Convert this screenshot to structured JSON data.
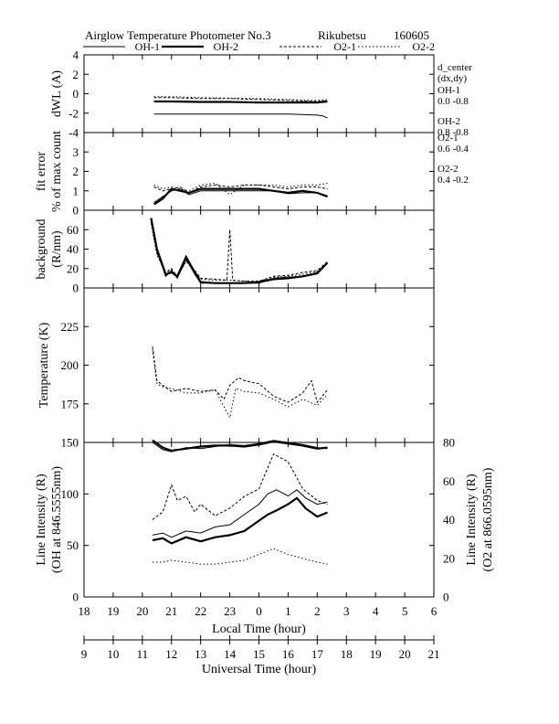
{
  "title": {
    "name": "Airglow Temperature Photometer No.3",
    "station": "Rikubetsu",
    "date": "160605"
  },
  "legend": [
    {
      "name": "OH-1",
      "style": "s-oh1"
    },
    {
      "name": "OH-2",
      "style": "s-oh2"
    },
    {
      "name": "O2-1",
      "style": "s-o21"
    },
    {
      "name": "O2-2",
      "style": "s-o22"
    }
  ],
  "d_center": {
    "title": "d_center",
    "subtitle": "(dx,dy)",
    "items": [
      {
        "name": "OH-1",
        "value": "0.0   -0.8"
      },
      {
        "name": "OH-2",
        "value": "0.8   -0.8"
      },
      {
        "name": "O2-1",
        "value": "0.6   -0.4"
      },
      {
        "name": "O2-2",
        "value": "0.4   -0.2"
      }
    ]
  },
  "xaxis_local": {
    "label": "Local Time (hour)",
    "ticks": [
      "18",
      "19",
      "20",
      "21",
      "22",
      "23",
      "0",
      "1",
      "2",
      "3",
      "4",
      "5",
      "6"
    ]
  },
  "xaxis_ut": {
    "label": "Universal Time (hour)",
    "ticks": [
      "9",
      "10",
      "11",
      "12",
      "13",
      "14",
      "15",
      "16",
      "17",
      "18",
      "19",
      "20",
      "21"
    ]
  },
  "chart_data": [
    {
      "type": "line",
      "panel": "dwl",
      "ylabel": "dWL (A)",
      "ylim": [
        -4,
        4
      ],
      "yticks": [
        "4",
        "2",
        "0",
        "-2",
        "-4"
      ],
      "x_unit": "local time (hour, 18-30)",
      "series": [
        {
          "name": "OH-1",
          "x": [
            20.4,
            21,
            22,
            23,
            24,
            25,
            26,
            26.2,
            26.35
          ],
          "y": [
            -2.1,
            -2.1,
            -2.1,
            -2.1,
            -2.1,
            -2.1,
            -2.2,
            -2.3,
            -2.5
          ]
        },
        {
          "name": "OH-2",
          "x": [
            20.4,
            21,
            22,
            23,
            24,
            25,
            26,
            26.35
          ],
          "y": [
            -0.8,
            -0.8,
            -0.85,
            -0.85,
            -0.9,
            -0.9,
            -0.9,
            -0.8
          ]
        },
        {
          "name": "O2-1",
          "x": [
            20.4,
            21,
            22,
            23,
            24,
            25,
            26,
            26.35
          ],
          "y": [
            -0.4,
            -0.4,
            -0.5,
            -0.5,
            -0.6,
            -0.7,
            -0.8,
            -0.7
          ]
        },
        {
          "name": "O2-2",
          "x": [
            20.4,
            21,
            22,
            23,
            24,
            25,
            26,
            26.35
          ],
          "y": [
            -0.3,
            -0.3,
            -0.4,
            -0.45,
            -0.5,
            -0.6,
            -0.7,
            -0.6
          ]
        }
      ]
    },
    {
      "type": "line",
      "panel": "fit",
      "ylabel": "fit error",
      "ylabel2": "% of max count",
      "ylim": [
        0,
        4
      ],
      "yticks": [
        "3",
        "2",
        "1",
        "0"
      ],
      "series": [
        {
          "name": "OH-1",
          "x": [
            20.4,
            20.7,
            21,
            21.3,
            21.6,
            22,
            22.5,
            23,
            23.5,
            24,
            24.5,
            25,
            25.5,
            26,
            26.35
          ],
          "y": [
            0.4,
            0.7,
            1.0,
            1.1,
            0.8,
            1.0,
            1.0,
            1.0,
            1.0,
            1.0,
            1.0,
            0.85,
            0.9,
            0.9,
            0.75
          ]
        },
        {
          "name": "OH-2",
          "x": [
            20.4,
            20.7,
            21,
            21.3,
            21.6,
            22,
            22.5,
            23,
            23.5,
            24,
            24.5,
            25,
            25.5,
            26,
            26.35
          ],
          "y": [
            0.3,
            0.6,
            1.1,
            1.0,
            0.9,
            1.1,
            1.1,
            1.1,
            1.1,
            1.1,
            1.0,
            0.9,
            1.0,
            0.9,
            0.7
          ]
        },
        {
          "name": "O2-1",
          "x": [
            20.4,
            20.7,
            21,
            21.3,
            21.6,
            22,
            22.5,
            23,
            23.5,
            24,
            24.5,
            25,
            25.5,
            26,
            26.35
          ],
          "y": [
            1.2,
            1.0,
            1.1,
            1.2,
            0.9,
            1.2,
            1.3,
            1.2,
            1.3,
            1.3,
            1.2,
            1.1,
            1.2,
            1.2,
            1.1
          ]
        },
        {
          "name": "O2-2",
          "x": [
            20.4,
            20.7,
            21,
            21.3,
            21.6,
            22,
            22.5,
            23,
            23.5,
            24,
            24.5,
            25,
            25.5,
            26,
            26.35
          ],
          "y": [
            1.3,
            1.1,
            1.2,
            1.1,
            1.0,
            1.3,
            1.4,
            0.8,
            1.3,
            1.3,
            1.3,
            1.2,
            1.3,
            1.3,
            1.4
          ]
        }
      ]
    },
    {
      "type": "line",
      "panel": "bg",
      "ylabel": "background",
      "ylabel2": "(R/nm)",
      "ylim": [
        0,
        80
      ],
      "yticks": [
        "60",
        "40",
        "20",
        "0"
      ],
      "series": [
        {
          "name": "OH-1",
          "x": [
            20.3,
            20.5,
            20.8,
            21,
            21.2,
            21.5,
            21.8,
            22,
            22.5,
            23,
            23.5,
            24,
            24.5,
            25,
            25.5,
            26,
            26.35
          ],
          "y": [
            70,
            38,
            12,
            18,
            10,
            30,
            14,
            5,
            5,
            5,
            5,
            5,
            10,
            11,
            12,
            16,
            25
          ]
        },
        {
          "name": "OH-2",
          "x": [
            20.3,
            20.5,
            20.8,
            21,
            21.2,
            21.5,
            21.8,
            22,
            22.5,
            23,
            23.5,
            24,
            24.5,
            25,
            25.5,
            26,
            26.35
          ],
          "y": [
            72,
            40,
            14,
            16,
            12,
            32,
            16,
            6,
            5,
            5,
            5,
            6,
            9,
            10,
            12,
            15,
            26
          ]
        },
        {
          "name": "O2-1",
          "x": [
            20.3,
            20.5,
            20.8,
            21,
            21.2,
            21.5,
            21.8,
            22,
            22.5,
            22.9,
            23.0,
            23.1,
            23.5,
            24,
            24.5,
            25,
            25.5,
            26,
            26.35
          ],
          "y": [
            68,
            36,
            16,
            20,
            12,
            28,
            18,
            10,
            9,
            8,
            60,
            8,
            7,
            7,
            12,
            13,
            16,
            18,
            27
          ]
        },
        {
          "name": "O2-2",
          "x": [
            20.3,
            20.5,
            20.8,
            21,
            21.2,
            21.5,
            21.8,
            22,
            22.5,
            23,
            23.5,
            24,
            24.5,
            25,
            25.5,
            26,
            26.35
          ],
          "y": [
            66,
            34,
            15,
            19,
            11,
            27,
            17,
            9,
            8,
            8,
            7,
            7,
            11,
            12,
            14,
            17,
            26
          ]
        }
      ]
    },
    {
      "type": "line",
      "panel": "temp",
      "ylabel": "Temperature (K)",
      "ylim": [
        150,
        250
      ],
      "yticks": [
        "225",
        "200",
        "175"
      ],
      "series": [
        {
          "name": "O2-1",
          "x": [
            20.35,
            20.5,
            20.7,
            21,
            21.5,
            22,
            22.5,
            22.8,
            23,
            23.3,
            23.5,
            24,
            24.5,
            25,
            25.5,
            25.8,
            26,
            26.35
          ],
          "y": [
            212,
            190,
            187,
            183,
            185,
            183,
            184,
            178,
            187,
            192,
            190,
            188,
            180,
            176,
            182,
            190,
            176,
            184
          ]
        },
        {
          "name": "O2-2",
          "x": [
            20.35,
            20.5,
            20.7,
            21,
            21.5,
            22,
            22.5,
            23,
            23.2,
            23.5,
            24,
            24.5,
            25,
            25.5,
            26,
            26.35
          ],
          "y": [
            210,
            188,
            186,
            185,
            182,
            182,
            184,
            166,
            185,
            183,
            182,
            178,
            173,
            178,
            174,
            181
          ]
        }
      ]
    },
    {
      "type": "line",
      "panel": "int",
      "ylabel": "Line Intensity (R)",
      "ylabel2": "(OH at 846.5555nm)",
      "ylabel_right": "Line Intensity (R)",
      "ylabel_right2": "(O2 at 866.0595nm)",
      "ylim": [
        0,
        150
      ],
      "ylim_right": [
        0,
        80
      ],
      "yticks": [
        "150",
        "100",
        "50",
        "0"
      ],
      "yticks_right": [
        "80",
        "60",
        "40",
        "20",
        "0"
      ],
      "series": [
        {
          "name": "OH-1",
          "axis": "left",
          "x": [
            20.35,
            20.7,
            21,
            21.5,
            22,
            22.5,
            23,
            23.5,
            24,
            24.3,
            24.6,
            25,
            25.3,
            25.6,
            26,
            26.35
          ],
          "y": [
            60,
            62,
            58,
            64,
            62,
            68,
            70,
            80,
            90,
            100,
            104,
            98,
            104,
            96,
            90,
            92
          ]
        },
        {
          "name": "OH-2",
          "axis": "left",
          "x": [
            20.35,
            20.7,
            21,
            21.5,
            22,
            22.5,
            23,
            23.5,
            24,
            24.3,
            24.6,
            25,
            25.3,
            25.6,
            26,
            26.35
          ],
          "y": [
            55,
            57,
            52,
            58,
            54,
            58,
            60,
            64,
            74,
            80,
            84,
            90,
            96,
            86,
            78,
            82
          ]
        },
        {
          "name": "OH-1 upper",
          "axis": "left",
          "x": [
            20.35,
            20.7,
            21,
            21.5,
            22,
            22.5,
            23,
            23.5,
            24,
            24.5,
            25,
            25.5,
            26,
            26.35
          ],
          "y": [
            150,
            143,
            141,
            145,
            144,
            146,
            148,
            147,
            149,
            152,
            150,
            148,
            145,
            144
          ]
        },
        {
          "name": "OH-2 upper",
          "axis": "left",
          "x": [
            20.35,
            20.7,
            21,
            21.5,
            22,
            22.5,
            23,
            23.5,
            24,
            24.5,
            25,
            25.5,
            26,
            26.35
          ],
          "y": [
            152,
            145,
            142,
            144,
            146,
            147,
            147,
            146,
            148,
            151,
            149,
            147,
            144,
            145
          ]
        },
        {
          "name": "O2-1",
          "axis": "right",
          "x": [
            20.35,
            20.7,
            21,
            21.2,
            21.5,
            21.8,
            22,
            22.5,
            23,
            23.5,
            24,
            24.5,
            25,
            25.5,
            26,
            26.35
          ],
          "y": [
            40,
            44,
            58,
            50,
            52,
            44,
            48,
            42,
            46,
            52,
            56,
            74,
            70,
            56,
            50,
            48
          ]
        },
        {
          "name": "O2-2",
          "axis": "right",
          "x": [
            20.35,
            20.7,
            21,
            21.5,
            22,
            22.5,
            23,
            23.5,
            24,
            24.5,
            25,
            25.5,
            26,
            26.35
          ],
          "y": [
            18,
            18,
            19,
            18,
            17,
            17,
            18,
            19,
            22,
            25,
            22,
            20,
            18,
            17
          ]
        }
      ]
    }
  ]
}
